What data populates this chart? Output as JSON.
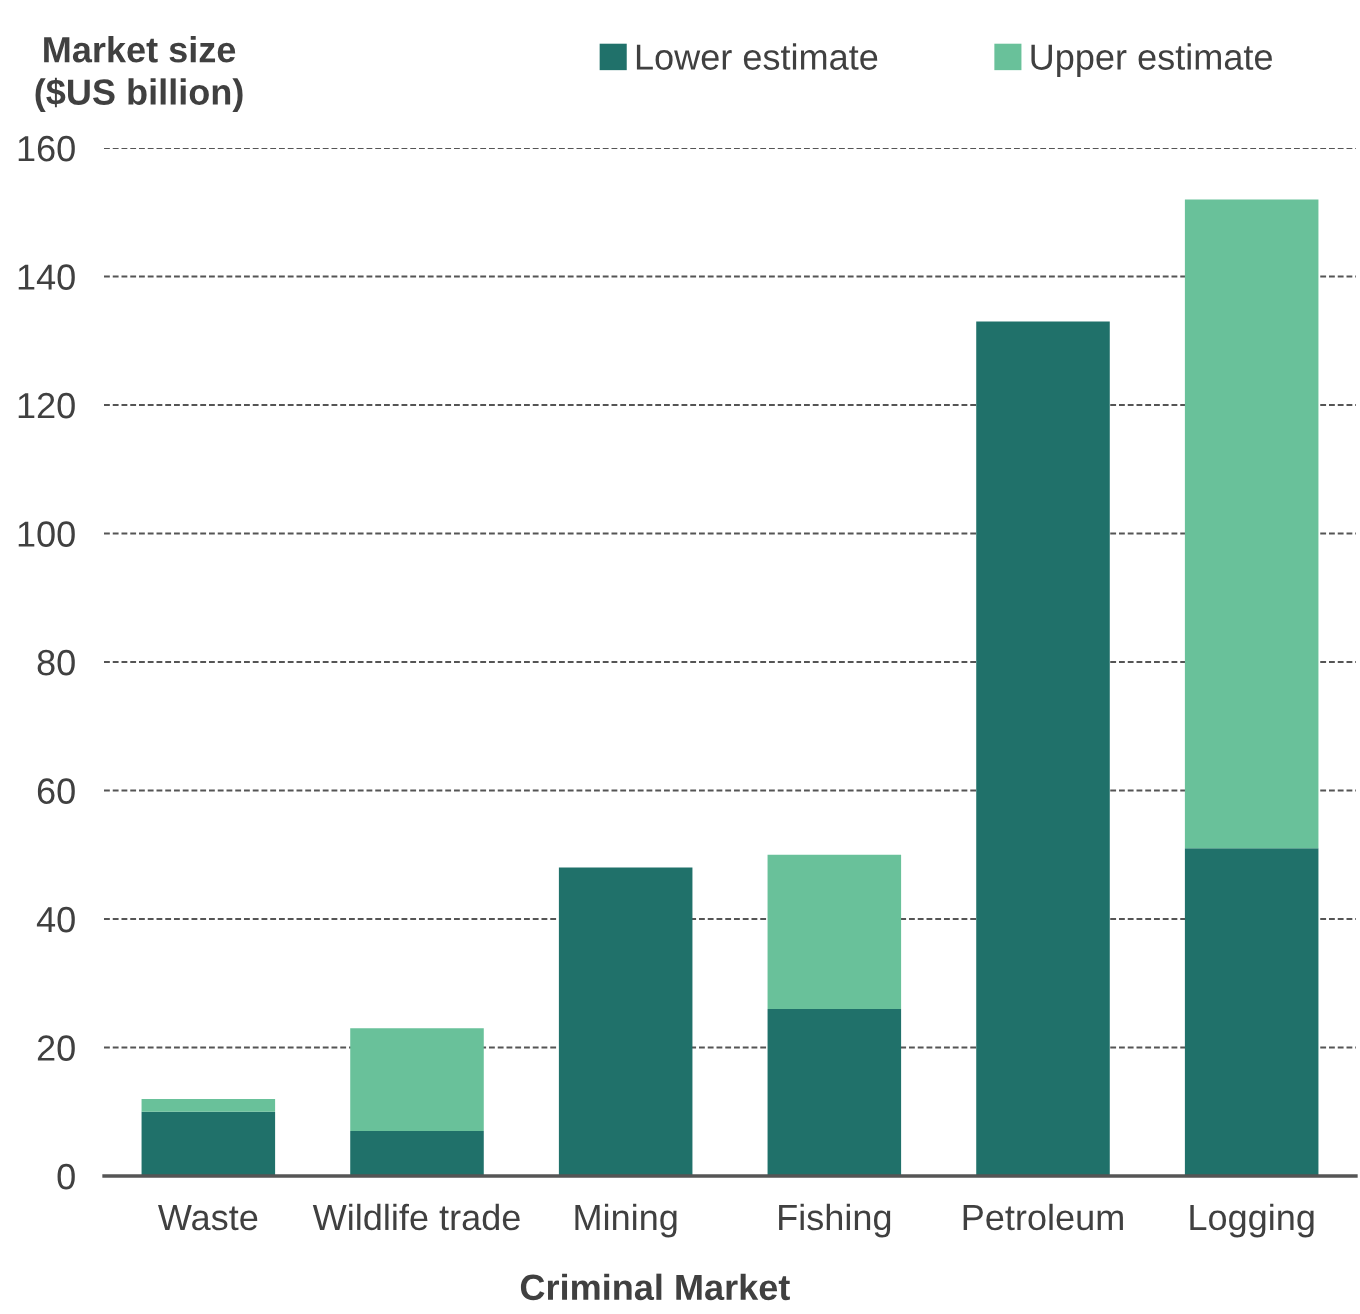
{
  "chart_data": {
    "type": "bar",
    "stacked": true,
    "ylabel": "Market size\n($US billion)",
    "xlabel": "Criminal Market",
    "categories": [
      "Waste",
      "Wildlife trade",
      "Mining",
      "Fishing",
      "Petroleum",
      "Logging"
    ],
    "series": [
      {
        "name": "Lower estimate",
        "color": "#20716a",
        "values": [
          10,
          7,
          48,
          26,
          133,
          51
        ]
      },
      {
        "name": "Upper estimate",
        "color": "#69c19a",
        "values": [
          2,
          16,
          0,
          24,
          0,
          101
        ]
      }
    ],
    "ylim": [
      0,
      160
    ],
    "yticks": [
      0,
      20,
      40,
      60,
      80,
      100,
      120,
      140,
      160
    ],
    "grid": "y",
    "legend": "top"
  }
}
